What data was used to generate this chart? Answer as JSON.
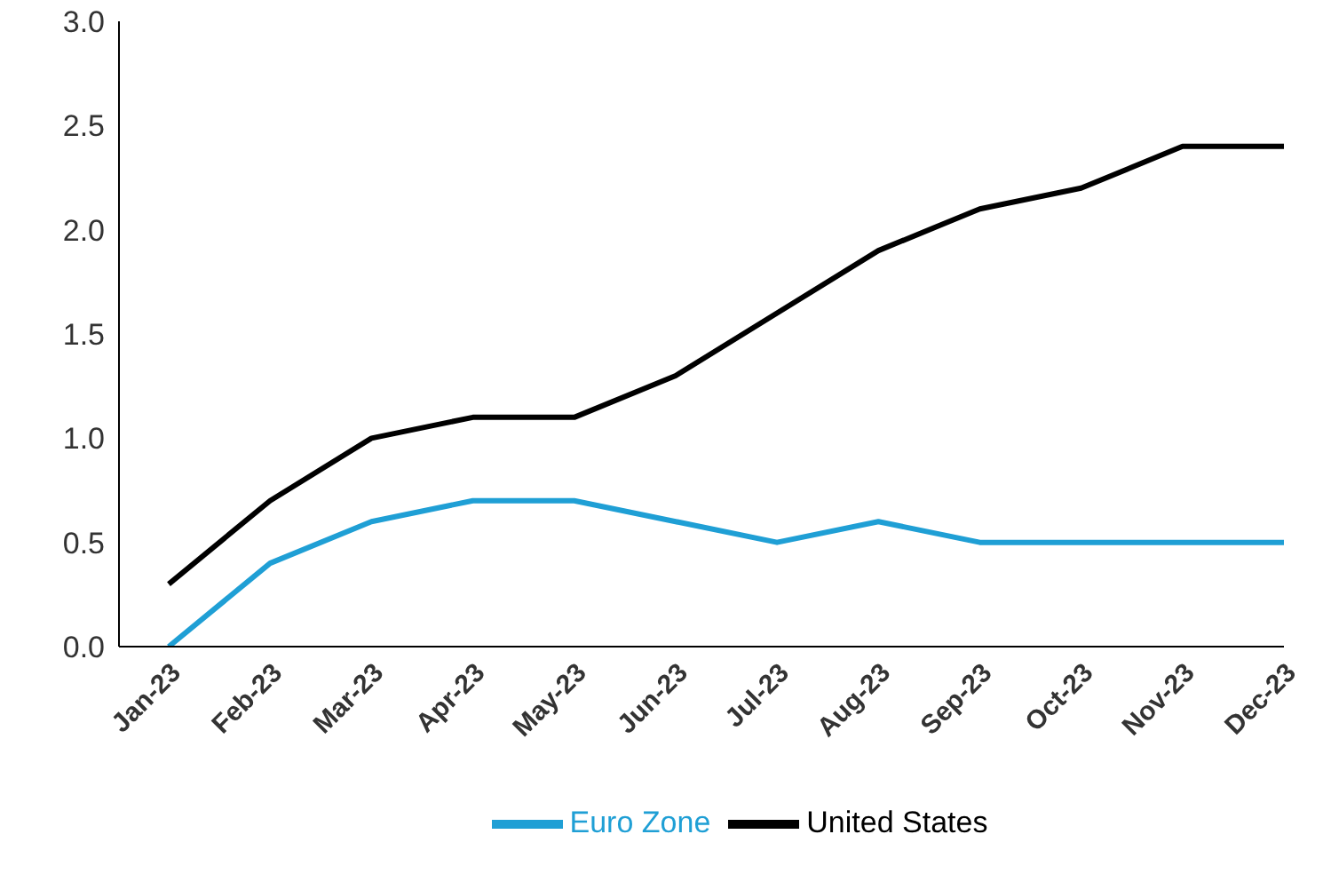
{
  "chart_data": {
    "type": "line",
    "categories": [
      "Jan-23",
      "Feb-23",
      "Mar-23",
      "Apr-23",
      "May-23",
      "Jun-23",
      "Jul-23",
      "Aug-23",
      "Sep-23",
      "Oct-23",
      "Nov-23",
      "Dec-23"
    ],
    "series": [
      {
        "name": "Euro Zone",
        "color": "#1f9fd5",
        "values": [
          0,
          0.4,
          0.6,
          0.7,
          0.7,
          0.6,
          0.5,
          0.6,
          0.5,
          0.5,
          0.5,
          0.5
        ]
      },
      {
        "name": "United States",
        "color": "#000000",
        "values": [
          0.3,
          0.7,
          1.0,
          1.1,
          1.1,
          1.3,
          1.6,
          1.9,
          2.1,
          2.2,
          2.4,
          2.4
        ]
      }
    ],
    "ylim": [
      0,
      3
    ],
    "yticks": [
      {
        "value": 0,
        "label": "0.0"
      },
      {
        "value": 0.5,
        "label": "0.5"
      },
      {
        "value": 1,
        "label": "1.0"
      },
      {
        "value": 1.5,
        "label": "1.5"
      },
      {
        "value": 2,
        "label": "2.0"
      },
      {
        "value": 2.5,
        "label": "2.5"
      },
      {
        "value": 3,
        "label": "3.0"
      }
    ],
    "grid": false,
    "legend": "bottom",
    "marker": "none",
    "line_style": "solid"
  }
}
